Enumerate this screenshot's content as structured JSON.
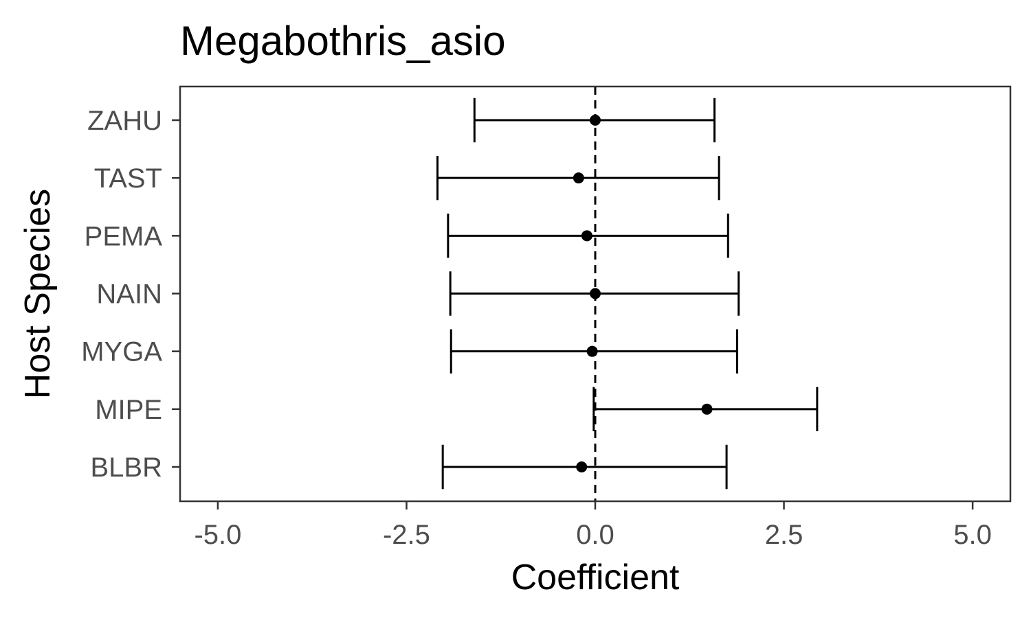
{
  "chart_data": {
    "type": "errorbar",
    "title": "Megabothris_asio",
    "xlabel": "Coefficient",
    "ylabel": "Host Species",
    "xlim": [
      -5.5,
      5.5
    ],
    "xticks": [
      "-5.0",
      "-2.5",
      "0.0",
      "2.5",
      "5.0"
    ],
    "xtick_values": [
      -5.0,
      -2.5,
      0.0,
      2.5,
      5.0
    ],
    "reference_line": {
      "x": 0,
      "style": "dashed"
    },
    "grid": false,
    "categories": [
      "ZAHU",
      "TAST",
      "PEMA",
      "NAIN",
      "MYGA",
      "MIPE",
      "BLBR"
    ],
    "points": [
      {
        "category": "ZAHU",
        "estimate": 0.0,
        "lower": -1.6,
        "upper": 1.58
      },
      {
        "category": "TAST",
        "estimate": -0.22,
        "lower": -2.09,
        "upper": 1.64
      },
      {
        "category": "PEMA",
        "estimate": -0.11,
        "lower": -1.95,
        "upper": 1.76
      },
      {
        "category": "NAIN",
        "estimate": 0.0,
        "lower": -1.92,
        "upper": 1.9
      },
      {
        "category": "MYGA",
        "estimate": -0.04,
        "lower": -1.91,
        "upper": 1.88
      },
      {
        "category": "MIPE",
        "estimate": 1.48,
        "lower": -0.02,
        "upper": 2.94
      },
      {
        "category": "BLBR",
        "estimate": -0.18,
        "lower": -2.02,
        "upper": 1.74
      }
    ]
  }
}
